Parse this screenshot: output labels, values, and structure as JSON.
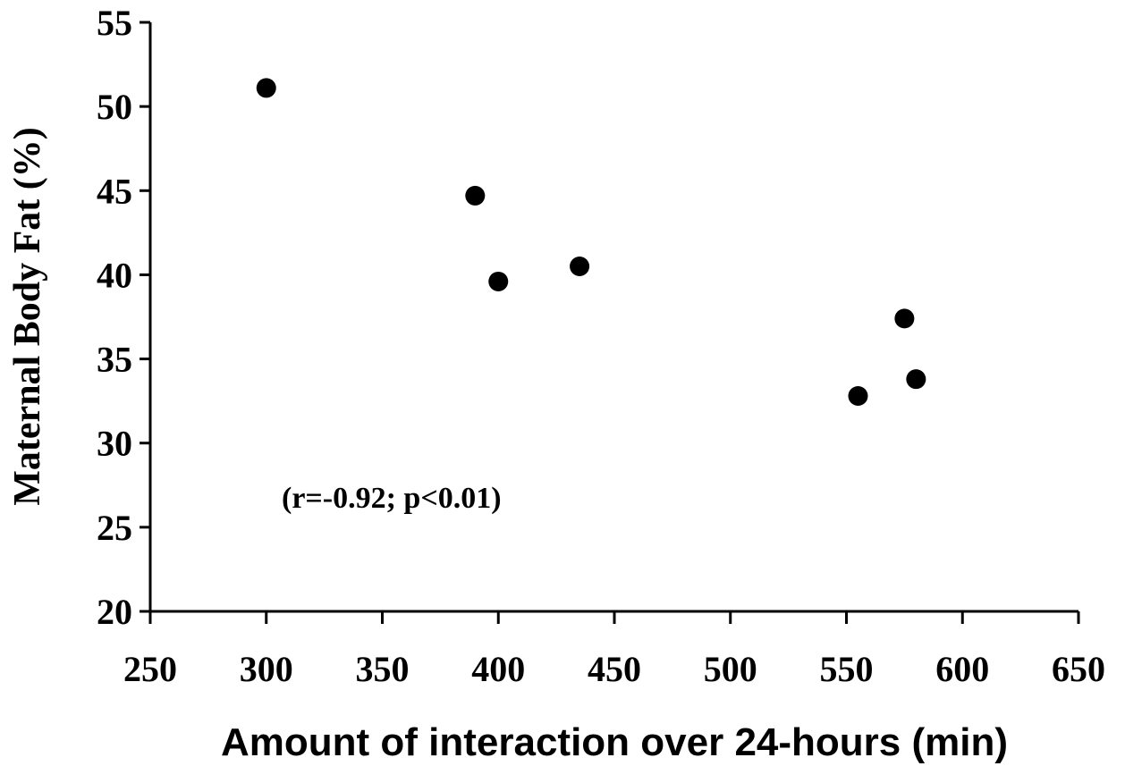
{
  "chart_data": {
    "type": "scatter",
    "title": "",
    "xlabel": "Amount of interaction over 24-hours (min)",
    "ylabel": "Maternal Body Fat (%)",
    "xlim": [
      250,
      650
    ],
    "ylim": [
      20,
      55
    ],
    "xticks": [
      250,
      300,
      350,
      400,
      450,
      500,
      550,
      600,
      650
    ],
    "yticks": [
      20,
      25,
      30,
      35,
      40,
      45,
      50,
      55
    ],
    "grid": false,
    "legend": "none",
    "annotation": "(r=-0.92; p<0.01)",
    "marker_color": "#000000",
    "points": [
      {
        "x": 300,
        "y": 51.1
      },
      {
        "x": 390,
        "y": 44.7
      },
      {
        "x": 400,
        "y": 39.6
      },
      {
        "x": 435,
        "y": 40.5
      },
      {
        "x": 555,
        "y": 32.8
      },
      {
        "x": 575,
        "y": 37.4
      },
      {
        "x": 580,
        "y": 33.8
      }
    ]
  }
}
